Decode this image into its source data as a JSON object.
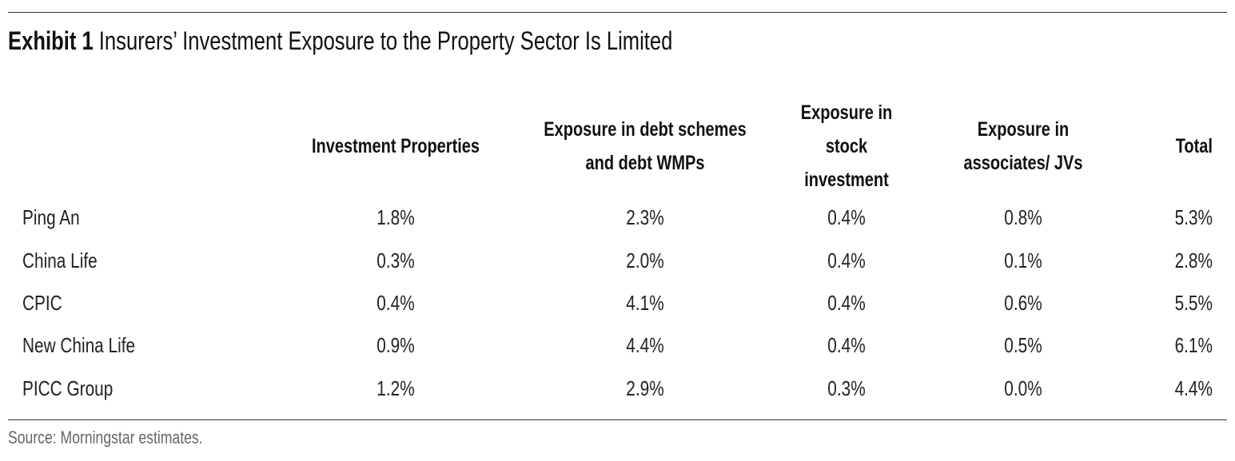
{
  "title": {
    "label": "Exhibit 1",
    "text": "Insurers’ Investment Exposure to the Property Sector Is Limited"
  },
  "chart_data": {
    "type": "table",
    "title": "Exhibit 1 Insurers’ Investment Exposure to the Property Sector Is Limited",
    "columns": [
      [
        "Investment Properties"
      ],
      [
        "Exposure in debt schemes",
        "and debt WMPs"
      ],
      [
        "Exposure in",
        "stock",
        "investment"
      ],
      [
        "Exposure in",
        "associates/ JVs"
      ],
      [
        "Total"
      ]
    ],
    "rows": [
      {
        "name": "Ping An",
        "values": [
          "1.8%",
          "2.3%",
          "0.4%",
          "0.8%",
          "5.3%"
        ]
      },
      {
        "name": "China Life",
        "values": [
          "0.3%",
          "2.0%",
          "0.4%",
          "0.1%",
          "2.8%"
        ]
      },
      {
        "name": "CPIC",
        "values": [
          "0.4%",
          "4.1%",
          "0.4%",
          "0.6%",
          "5.5%"
        ]
      },
      {
        "name": "New China Life",
        "values": [
          "0.9%",
          "4.4%",
          "0.4%",
          "0.5%",
          "6.1%"
        ]
      },
      {
        "name": "PICC Group",
        "values": [
          "1.2%",
          "2.9%",
          "0.3%",
          "0.0%",
          "4.4%"
        ]
      }
    ]
  },
  "source": "Source: Morningstar estimates."
}
